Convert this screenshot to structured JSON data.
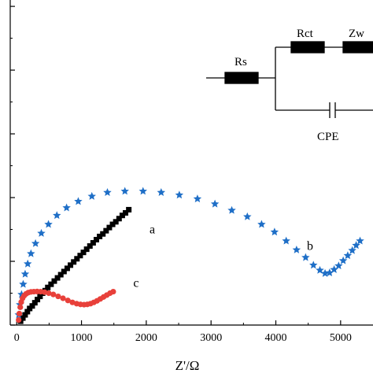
{
  "chart_data": {
    "type": "scatter",
    "title": "",
    "xlabel": "Z'/Ω",
    "ylabel": "",
    "xlim": [
      -100,
      5500
    ],
    "ylim": [
      0,
      2550
    ],
    "xticks": [
      0,
      1000,
      2000,
      3000,
      4000,
      5000
    ],
    "xtick_labels": [
      "0",
      "1000",
      "2000",
      "3000",
      "4000",
      "5000"
    ],
    "yticks": [
      0,
      500,
      1000,
      1500,
      2000,
      2500
    ],
    "grid": false,
    "series": [
      {
        "name": "a",
        "marker": "square",
        "color": "#000000",
        "label_pos": [
          2050,
          720
        ],
        "x": [
          60,
          95,
          130,
          165,
          200,
          240,
          280,
          320,
          360,
          400,
          440,
          480,
          530,
          580,
          630,
          680,
          730,
          780,
          830,
          880,
          930,
          980,
          1030,
          1080,
          1130,
          1180,
          1230,
          1280,
          1330,
          1380,
          1430,
          1480,
          1530,
          1580,
          1630,
          1680,
          1730
        ],
        "y": [
          30,
          55,
          80,
          105,
          130,
          150,
          175,
          200,
          225,
          250,
          270,
          295,
          320,
          345,
          370,
          395,
          420,
          445,
          470,
          495,
          520,
          545,
          570,
          595,
          620,
          645,
          670,
          695,
          715,
          740,
          765,
          790,
          810,
          835,
          860,
          880,
          905
        ]
      },
      {
        "name": "b",
        "marker": "star",
        "color": "#1f6fc7",
        "label_pos": [
          4480,
          590
        ],
        "x": [
          30,
          50,
          75,
          100,
          130,
          170,
          220,
          290,
          380,
          490,
          620,
          770,
          950,
          1160,
          1400,
          1670,
          1950,
          2230,
          2510,
          2790,
          3060,
          3320,
          3560,
          3780,
          3980,
          4160,
          4320,
          4460,
          4580,
          4680,
          4760,
          4830,
          4900,
          4970,
          5040,
          5110,
          5180,
          5240,
          5300
        ],
        "y": [
          80,
          160,
          240,
          320,
          400,
          480,
          560,
          640,
          720,
          790,
          860,
          920,
          970,
          1010,
          1040,
          1050,
          1050,
          1040,
          1020,
          990,
          950,
          900,
          850,
          790,
          730,
          660,
          590,
          530,
          470,
          430,
          405,
          410,
          435,
          465,
          505,
          545,
          585,
          625,
          660
        ]
      },
      {
        "name": "c",
        "marker": "circle",
        "color": "#e8403a",
        "label_pos": [
          1800,
          300
        ],
        "x": [
          30,
          40,
          55,
          70,
          90,
          115,
          145,
          180,
          220,
          265,
          315,
          370,
          430,
          495,
          565,
          640,
          715,
          790,
          860,
          925,
          985,
          1040,
          1090,
          1140,
          1190,
          1240,
          1290,
          1340,
          1390,
          1440,
          1490
        ],
        "y": [
          40,
          90,
          140,
          180,
          210,
          230,
          245,
          255,
          260,
          262,
          263,
          262,
          258,
          250,
          240,
          225,
          210,
          193,
          178,
          168,
          162,
          160,
          162,
          168,
          178,
          190,
          205,
          220,
          235,
          250,
          262
        ]
      }
    ],
    "inset_circuit": {
      "labels": [
        "Rs",
        "Rct",
        "Zw",
        "CPE"
      ]
    }
  }
}
